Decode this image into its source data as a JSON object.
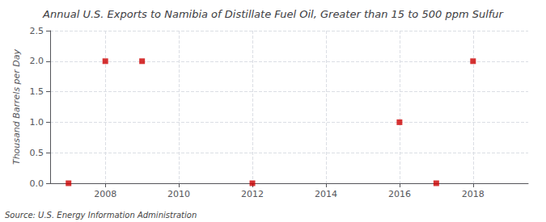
{
  "chart_data": {
    "type": "scatter",
    "title": "Annual U.S. Exports to Namibia of Distillate Fuel Oil, Greater than 15 to 500 ppm Sulfur",
    "ylabel": "Thousand Barrels per Day",
    "annotation": "Source: U.S. Energy Information Administration",
    "x": [
      2007,
      2008,
      2009,
      2012,
      2016,
      2017,
      2018
    ],
    "values": [
      0.0,
      2.0,
      2.0,
      0.0,
      1.0,
      0.0,
      2.0
    ],
    "color": "#cc0000",
    "marker": "square",
    "xlim": [
      2006.5,
      2019.5
    ],
    "xticks": [
      2008,
      2010,
      2012,
      2014,
      2016,
      2018
    ],
    "ylim": [
      0.0,
      2.5
    ],
    "yticks": [
      {
        "value": 0.0,
        "label": "0.0"
      },
      0.5,
      {
        "value": 1.0,
        "label": "1.0"
      },
      1.5,
      {
        "value": 2.0,
        "label": "2.0"
      },
      2.5
    ],
    "grid": true
  }
}
